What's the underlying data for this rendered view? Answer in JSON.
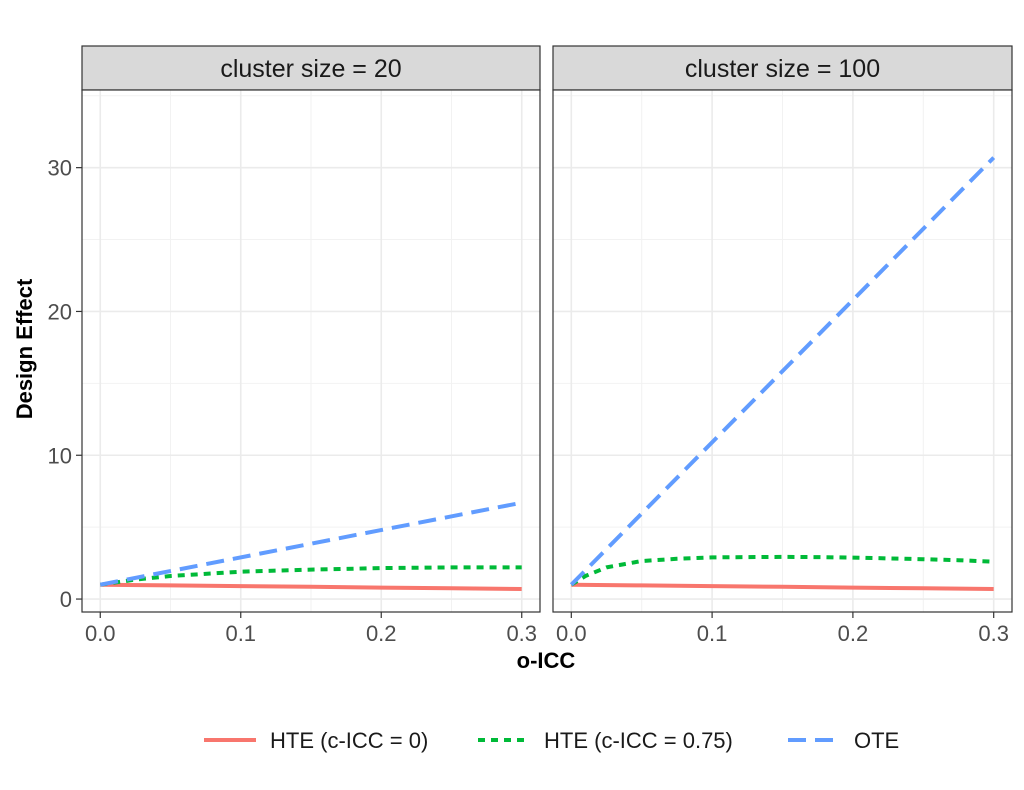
{
  "chart_data": {
    "type": "line",
    "xlabel": "o-ICC",
    "ylabel": "Design Effect",
    "xlim": [
      -0.013,
      0.313
    ],
    "ylim": [
      -0.9,
      35.4
    ],
    "x_ticks": [
      0.0,
      0.1,
      0.2,
      0.3
    ],
    "x_tick_labels": [
      "0.0",
      "0.1",
      "0.2",
      "0.3"
    ],
    "y_ticks": [
      0,
      10,
      20,
      30
    ],
    "y_tick_labels": [
      "0",
      "10",
      "20",
      "30"
    ],
    "grid": true,
    "legend_position": "bottom",
    "legend": [
      {
        "label": "HTE (c-ICC = 0)",
        "color": "#F8766D",
        "dash": "solid"
      },
      {
        "label": "HTE (c-ICC = 0.75)",
        "color": "#00BA38",
        "dash": "dotted"
      },
      {
        "label": "OTE",
        "color": "#619CFF",
        "dash": "dashed"
      }
    ],
    "panels": [
      {
        "strip": "cluster size = 20",
        "series": [
          {
            "name": "HTE (c-ICC = 0)",
            "x": [
              0,
              0.05,
              0.1,
              0.15,
              0.2,
              0.25,
              0.3
            ],
            "y": [
              1.0,
              0.95,
              0.9,
              0.85,
              0.8,
              0.75,
              0.7
            ]
          },
          {
            "name": "HTE (c-ICC = 0.75)",
            "x": [
              0,
              0.025,
              0.05,
              0.1,
              0.15,
              0.2,
              0.25,
              0.3
            ],
            "y": [
              1.0,
              1.35,
              1.6,
              1.9,
              2.05,
              2.15,
              2.2,
              2.2
            ]
          },
          {
            "name": "OTE",
            "x": [
              0,
              0.3
            ],
            "y": [
              1.0,
              6.7
            ]
          }
        ]
      },
      {
        "strip": "cluster size = 100",
        "series": [
          {
            "name": "HTE (c-ICC = 0)",
            "x": [
              0,
              0.05,
              0.1,
              0.15,
              0.2,
              0.25,
              0.3
            ],
            "y": [
              1.0,
              0.95,
              0.9,
              0.85,
              0.8,
              0.75,
              0.7
            ]
          },
          {
            "name": "HTE (c-ICC = 0.75)",
            "x": [
              0,
              0.01,
              0.025,
              0.05,
              0.075,
              0.1,
              0.125,
              0.15,
              0.175,
              0.2,
              0.225,
              0.25,
              0.275,
              0.3
            ],
            "y": [
              1.0,
              1.6,
              2.2,
              2.65,
              2.8,
              2.9,
              2.92,
              2.93,
              2.92,
              2.88,
              2.83,
              2.77,
              2.7,
              2.6
            ]
          },
          {
            "name": "OTE",
            "x": [
              0,
              0.3
            ],
            "y": [
              1.0,
              30.7
            ]
          }
        ]
      }
    ]
  }
}
